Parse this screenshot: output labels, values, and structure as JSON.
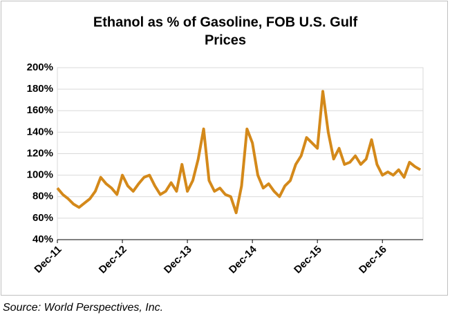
{
  "chart_data": {
    "type": "line",
    "title": [
      "Ethanol as %  of Gasoline, FOB U.S. Gulf",
      "Prices"
    ],
    "source": "Source: World Perspectives, Inc.",
    "categories": [
      "Dec-11",
      null,
      null,
      null,
      null,
      null,
      null,
      null,
      null,
      null,
      null,
      null,
      "Dec-12",
      null,
      null,
      null,
      null,
      null,
      null,
      null,
      null,
      null,
      null,
      null,
      "Dec-13",
      null,
      null,
      null,
      null,
      null,
      null,
      null,
      null,
      null,
      null,
      null,
      "Dec-14",
      null,
      null,
      null,
      null,
      null,
      null,
      null,
      null,
      null,
      null,
      null,
      "Dec-15",
      null,
      null,
      null,
      null,
      null,
      null,
      null,
      null,
      null,
      null,
      null,
      "Dec-16",
      null,
      null,
      null,
      null,
      null,
      null,
      null
    ],
    "series": [
      {
        "name": "Ethanol as % of Gasoline",
        "color": "#d4891a",
        "values": [
          88,
          82,
          78,
          73,
          70,
          74,
          78,
          85,
          98,
          92,
          88,
          82,
          100,
          90,
          85,
          92,
          98,
          100,
          90,
          82,
          85,
          93,
          85,
          110,
          85,
          95,
          115,
          143,
          95,
          85,
          88,
          82,
          80,
          65,
          90,
          143,
          130,
          100,
          88,
          92,
          85,
          80,
          90,
          95,
          110,
          118,
          135,
          130,
          125,
          178,
          140,
          115,
          125,
          110,
          112,
          118,
          110,
          115,
          133,
          110,
          100,
          103,
          100,
          105,
          98,
          112,
          108,
          105
        ]
      }
    ],
    "ylim": [
      40,
      200
    ],
    "yticks": [
      {
        "value": 40,
        "label": "40%"
      },
      {
        "value": 60,
        "label": "60%"
      },
      {
        "value": 80,
        "label": "80%"
      },
      {
        "value": 100,
        "label": "100%"
      },
      {
        "value": 120,
        "label": "120%"
      },
      {
        "value": 140,
        "label": "140%"
      },
      {
        "value": 160,
        "label": "160%"
      },
      {
        "value": 180,
        "label": "180%"
      },
      {
        "value": 200,
        "label": "200%"
      }
    ],
    "grid": true
  }
}
